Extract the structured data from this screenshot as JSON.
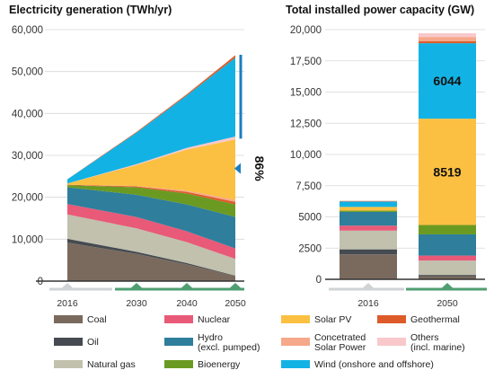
{
  "colors": {
    "coal": "#7a6a5e",
    "oil": "#454b50",
    "natural_gas": "#c1c1ae",
    "nuclear": "#e85a77",
    "hydro": "#2e7e9c",
    "bioenergy": "#6b9a22",
    "solar_pv": "#fbc042",
    "concentrated_solar": "#f6a88a",
    "geothermal": "#dd5b29",
    "others": "#f8c8cb",
    "wind": "#12b3e4",
    "accent_blue": "#1b7fc0",
    "timeline_green": "#4f9e72",
    "timeline_grey": "#cfd3d6"
  },
  "chart_data": [
    {
      "type": "area",
      "title": "Electricity generation (TWh/yr)",
      "x": [
        2016,
        2030,
        2040,
        2050
      ],
      "x_tick_labels": [
        "2016",
        "2030",
        "2040",
        "2050"
      ],
      "ylim": [
        0,
        60000
      ],
      "y_ticks": [
        0,
        10000,
        20000,
        30000,
        40000,
        50000,
        60000
      ],
      "y_tick_labels": [
        "0",
        "10,000",
        "20,000",
        "30,000",
        "40,000",
        "50,000",
        "60,000"
      ],
      "series": [
        {
          "name": "Coal",
          "color_key": "coal",
          "values": [
            9200,
            6500,
            4000,
            1200
          ]
        },
        {
          "name": "Oil",
          "color_key": "oil",
          "values": [
            900,
            500,
            300,
            100
          ]
        },
        {
          "name": "Natural gas",
          "color_key": "natural_gas",
          "values": [
            5800,
            5600,
            5000,
            4000
          ]
        },
        {
          "name": "Nuclear",
          "color_key": "nuclear",
          "values": [
            2500,
            2700,
            2600,
            2500
          ]
        },
        {
          "name": "Hydro (excl. pumped)",
          "color_key": "hydro",
          "values": [
            4000,
            5300,
            6400,
            7500
          ]
        },
        {
          "name": "Bioenergy",
          "color_key": "bioenergy",
          "values": [
            500,
            1800,
            2600,
            3000
          ]
        },
        {
          "name": "Geothermal",
          "color_key": "geothermal",
          "values": [
            100,
            200,
            400,
            600
          ]
        },
        {
          "name": "Concetrated Solar Power",
          "color_key": "concentrated_solar",
          "values": [
            0,
            100,
            300,
            500
          ]
        },
        {
          "name": "Solar PV",
          "color_key": "solar_pv",
          "values": [
            300,
            5000,
            9800,
            14400
          ]
        },
        {
          "name": "Others (incl. marine)",
          "color_key": "others",
          "values": [
            0,
            200,
            400,
            700
          ]
        },
        {
          "name": "Wind (onshore and offshore)",
          "color_key": "wind",
          "values": [
            1000,
            7500,
            12500,
            18800
          ]
        },
        {
          "name": "Geothermal",
          "color_key": "geothermal",
          "values": [
            0,
            200,
            300,
            600
          ]
        }
      ],
      "annotation": {
        "text": "86%",
        "from": 34000,
        "to": 54000
      }
    },
    {
      "type": "bar",
      "title": "Total installed power capacity (GW)",
      "categories": [
        "2016",
        "2050"
      ],
      "ylim": [
        0,
        20000
      ],
      "y_ticks": [
        0,
        2500,
        5000,
        7500,
        10000,
        12500,
        15000,
        17500,
        20000
      ],
      "y_tick_labels": [
        "0",
        "2500",
        "5000",
        "7,500",
        "10,000",
        "12,500",
        "15,000",
        "17,500",
        "20,000"
      ],
      "series": [
        {
          "name": "Coal",
          "color_key": "coal",
          "values": [
            2000,
            250
          ]
        },
        {
          "name": "Oil",
          "color_key": "oil",
          "values": [
            400,
            100
          ]
        },
        {
          "name": "Natural gas",
          "color_key": "natural_gas",
          "values": [
            1500,
            1150
          ]
        },
        {
          "name": "Nuclear",
          "color_key": "nuclear",
          "values": [
            400,
            400
          ]
        },
        {
          "name": "Hydro (excl. pumped)",
          "color_key": "hydro",
          "values": [
            1100,
            1700
          ]
        },
        {
          "name": "Bioenergy",
          "color_key": "bioenergy",
          "values": [
            100,
            750
          ]
        },
        {
          "name": "Solar PV",
          "color_key": "solar_pv",
          "values": [
            300,
            8519
          ]
        },
        {
          "name": "Wind (onshore and offshore)",
          "color_key": "wind",
          "values": [
            450,
            6044
          ]
        },
        {
          "name": "Geothermal",
          "color_key": "geothermal",
          "values": [
            20,
            150
          ]
        },
        {
          "name": "Concetrated Solar Power",
          "color_key": "concentrated_solar",
          "values": [
            10,
            350
          ]
        },
        {
          "name": "Others (incl. marine)",
          "color_key": "others",
          "values": [
            0,
            300
          ]
        }
      ],
      "data_labels": [
        {
          "category": "2050",
          "series": "Wind (onshore and offshore)",
          "text": "6044"
        },
        {
          "category": "2050",
          "series": "Solar PV",
          "text": "8519"
        }
      ]
    }
  ],
  "legend": [
    {
      "label": "Coal",
      "color_key": "coal"
    },
    {
      "label": "Oil",
      "color_key": "oil"
    },
    {
      "label": "Natural gas",
      "color_key": "natural_gas"
    },
    {
      "label": "Nuclear",
      "color_key": "nuclear"
    },
    {
      "label": "Hydro",
      "label2": "(excl. pumped)",
      "color_key": "hydro"
    },
    {
      "label": "Bioenergy",
      "color_key": "bioenergy"
    },
    {
      "label": "Solar PV",
      "color_key": "solar_pv"
    },
    {
      "label": "Concetrated",
      "label2": "Solar Power",
      "color_key": "concentrated_solar"
    },
    {
      "label": "Wind (onshore and offshore)",
      "color_key": "wind"
    },
    {
      "label": "Geothermal",
      "color_key": "geothermal"
    },
    {
      "label": "Others",
      "label2": "(incl. marine)",
      "color_key": "others"
    }
  ]
}
